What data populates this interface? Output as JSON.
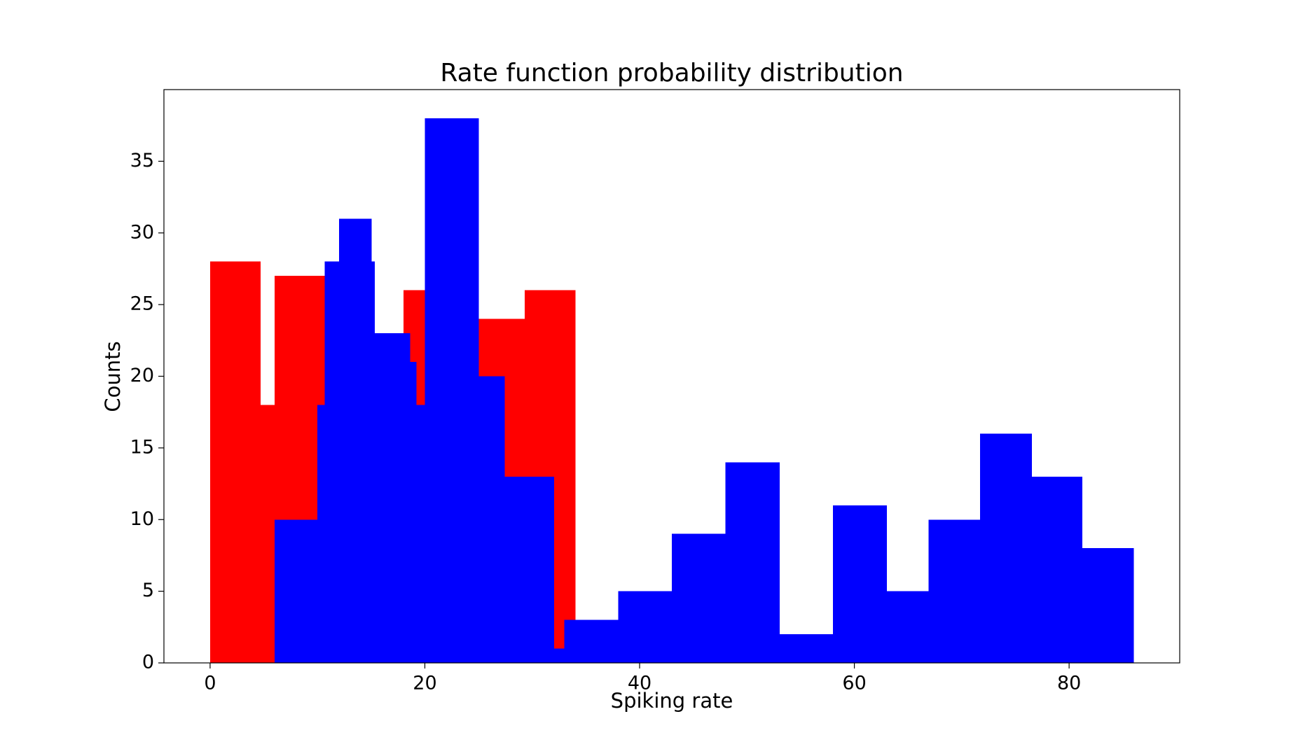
{
  "chart_data": {
    "type": "histogram",
    "title": "Rate function probability distribution",
    "x_label": "Spiking rate",
    "y_label": "Counts",
    "xlim": [
      -4.3,
      90.3
    ],
    "ylim": [
      0,
      40
    ],
    "xticks": [
      0,
      20,
      40,
      60,
      80
    ],
    "yticks": [
      0,
      5,
      10,
      15,
      20,
      25,
      30,
      35
    ],
    "grid": false,
    "series": [
      {
        "color": "#ff0000",
        "bins": [
          0,
          4.67,
          6,
          10.67,
          18,
          20,
          25,
          29.3,
          34
        ],
        "values": [
          28,
          18,
          27,
          22,
          26,
          25,
          24,
          26
        ]
      },
      {
        "color": "#0000ff",
        "bins": [
          6,
          10,
          10.67,
          12,
          15,
          15.3,
          18.6,
          19.2,
          20,
          25,
          27.4,
          32,
          33,
          38,
          43,
          48,
          53,
          58,
          63,
          66.9,
          71.7,
          76.5,
          81.2,
          86
        ],
        "values": [
          10,
          18,
          28,
          31,
          28,
          23,
          21,
          18,
          38,
          20,
          13,
          1,
          3,
          5,
          9,
          14,
          2,
          11,
          5,
          10,
          16,
          13,
          8
        ]
      }
    ]
  }
}
